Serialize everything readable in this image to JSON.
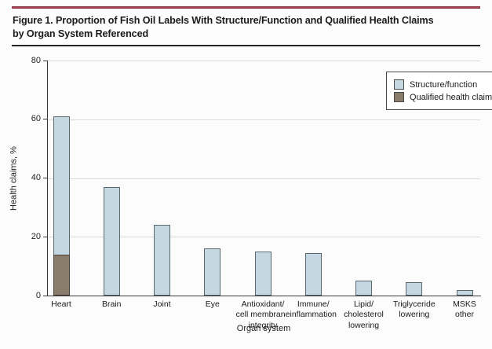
{
  "figure": {
    "title_line1": "Figure 1. Proportion of Fish Oil Labels With Structure/Function and Qualified Health Claims",
    "title_line2": "by Organ System Referenced",
    "accent_rule_color": "#9d3247"
  },
  "chart_data": {
    "type": "bar",
    "stacking": "overlay-from-baseline",
    "title": "Proportion of Fish Oil Labels With Structure/Function and Qualified Health Claims by Organ System Referenced",
    "xlabel": "Organ system",
    "ylabel": "Health claims, %",
    "ylim": [
      0,
      80
    ],
    "yticks": [
      0,
      20,
      40,
      60,
      80
    ],
    "grid": true,
    "legend_position": "top-right",
    "categories": [
      "Heart",
      "Brain",
      "Joint",
      "Eye",
      "Antioxidant/cell membrane integrity",
      "Immune/inflammation",
      "Lipid/cholesterol lowering",
      "Triglyceride lowering",
      "MSKS other"
    ],
    "category_labels": [
      "Heart",
      "Brain",
      "Joint",
      "Eye",
      "Antioxidant/\ncell membrane\nintegrity",
      "Immune/\ninflammation",
      "Lipid/\ncholesterol\nlowering",
      "Triglyceride\nlowering",
      "MSKS\nother"
    ],
    "series": [
      {
        "name": "Structure/function",
        "color": "#c5d8e2",
        "values": [
          61,
          37,
          24,
          16,
          15,
          14.5,
          5,
          4.5,
          2
        ]
      },
      {
        "name": "Qualified health claim",
        "color": "#8a7c6b",
        "values": [
          14,
          0,
          0,
          0,
          0,
          0,
          0,
          0,
          0
        ]
      }
    ]
  }
}
